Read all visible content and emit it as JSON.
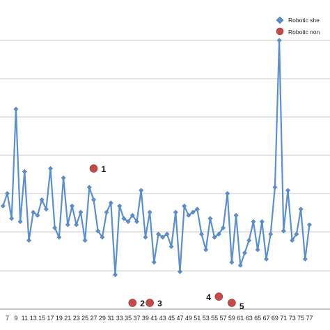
{
  "chart_data": {
    "type": "line",
    "x_ticks": [
      "7",
      "9",
      "11",
      "13",
      "15",
      "17",
      "19",
      "21",
      "23",
      "25",
      "27",
      "29",
      "31",
      "33",
      "35",
      "37",
      "39",
      "41",
      "43",
      "45",
      "47",
      "49",
      "51",
      "53",
      "55",
      "57",
      "59",
      "61",
      "63",
      "65",
      "67",
      "69",
      "71",
      "73",
      "75",
      "77"
    ],
    "x": [
      6,
      7,
      8,
      9,
      10,
      11,
      12,
      13,
      14,
      15,
      16,
      17,
      18,
      19,
      20,
      21,
      22,
      23,
      24,
      25,
      26,
      27,
      28,
      29,
      30,
      31,
      32,
      33,
      34,
      35,
      36,
      37,
      38,
      39,
      40,
      41,
      42,
      43,
      44,
      45,
      46,
      47,
      48,
      49,
      50,
      51,
      52,
      53,
      54,
      55,
      56,
      57,
      58,
      59,
      60,
      61,
      62,
      63,
      64,
      65,
      66,
      67,
      68,
      69,
      70,
      71,
      72,
      73,
      74,
      75,
      76,
      77
    ],
    "ylim": [
      0,
      8.6
    ],
    "grid": true,
    "legend_position": "top-right",
    "series": [
      {
        "name": "Robotic she",
        "color": "#5b8fd0",
        "marker": "diamond",
        "values": [
          3.3,
          3.7,
          2.9,
          6.4,
          2.8,
          4.4,
          2.2,
          3.1,
          3.0,
          3.5,
          3.2,
          4.5,
          2.6,
          2.3,
          4.2,
          2.7,
          3.3,
          2.7,
          3.1,
          2.2,
          3.9,
          3.5,
          2.5,
          2.3,
          3.1,
          3.4,
          1.1,
          3.3,
          2.9,
          2.8,
          3.0,
          2.8,
          3.8,
          2.3,
          3.1,
          1.5,
          2.4,
          2.3,
          2.4,
          2.0,
          3.1,
          1.2,
          3.3,
          3.0,
          3.1,
          3.2,
          2.4,
          1.9,
          2.9,
          2.3,
          2.4,
          2.6,
          3.7,
          1.5,
          3.0,
          1.4,
          1.8,
          2.2,
          2.8,
          1.9,
          2.8,
          1.6,
          2.4,
          3.9,
          8.6,
          2.5,
          3.8,
          2.2,
          2.4,
          3.2,
          1.6,
          2.7
        ]
      }
    ],
    "nonseries_note": "",
    "points": [
      {
        "name": "Robotic non",
        "color": "#c44a4a",
        "label": "1",
        "x": 27,
        "y": 4.5
      },
      {
        "name": "Robotic non",
        "color": "#c44a4a",
        "label": "2",
        "x": 36,
        "y": 0.2
      },
      {
        "name": "Robotic non",
        "color": "#c44a4a",
        "label": "3",
        "x": 40,
        "y": 0.2
      },
      {
        "name": "Robotic non",
        "color": "#c44a4a",
        "label": "4",
        "x": 56,
        "y": 0.4
      },
      {
        "name": "Robotic non",
        "color": "#c44a4a",
        "label": "5",
        "x": 59,
        "y": 0.2
      }
    ],
    "legend": [
      {
        "label": "Robotic she",
        "marker": "diamond",
        "color": "#5b8fd0"
      },
      {
        "label": "Robotic non",
        "marker": "circle",
        "color": "#c44a4a"
      }
    ]
  }
}
